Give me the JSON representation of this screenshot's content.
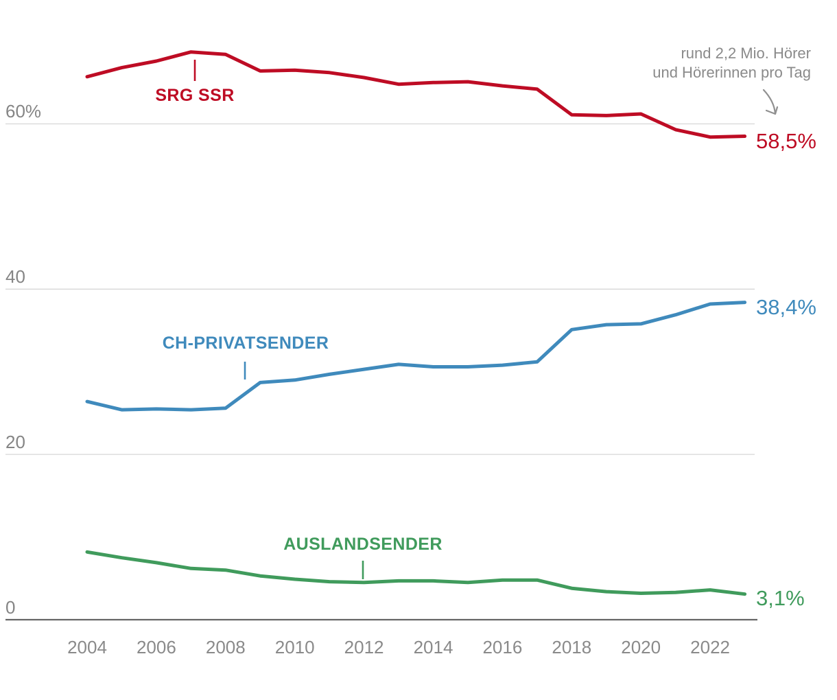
{
  "chart_data": {
    "type": "line",
    "title": "",
    "x": [
      2004,
      2005,
      2006,
      2007,
      2008,
      2009,
      2010,
      2011,
      2012,
      2013,
      2014,
      2015,
      2016,
      2017,
      2018,
      2019,
      2020,
      2021,
      2022,
      2023
    ],
    "x_tick_labels": [
      "2004",
      "2006",
      "2008",
      "2010",
      "2012",
      "2014",
      "2016",
      "2018",
      "2020",
      "2022"
    ],
    "y_ticks": [
      {
        "value": 60,
        "label": "60%"
      },
      {
        "value": 40,
        "label": "40"
      },
      {
        "value": 20,
        "label": "20"
      },
      {
        "value": 0,
        "label": "0"
      }
    ],
    "ylim": [
      0,
      75
    ],
    "grid": "horizontal",
    "legend": "inline-labels",
    "series": [
      {
        "name": "SRG SSR",
        "color": "#be0c24",
        "end_label": "58,5%",
        "values": [
          65.7,
          66.8,
          67.6,
          68.7,
          68.4,
          66.4,
          66.5,
          66.2,
          65.6,
          64.8,
          65.0,
          65.1,
          64.6,
          64.2,
          61.1,
          61.0,
          61.2,
          59.3,
          58.4,
          58.5
        ]
      },
      {
        "name": "CH-PRIVATSENDER",
        "color": "#3f8abc",
        "end_label": "38,4%",
        "values": [
          26.4,
          25.4,
          25.5,
          25.4,
          25.6,
          28.7,
          29.0,
          29.7,
          30.3,
          30.9,
          30.6,
          30.6,
          30.8,
          31.2,
          35.1,
          35.7,
          35.8,
          36.9,
          38.2,
          38.4
        ]
      },
      {
        "name": "AUSLANDSENDER",
        "color": "#409b5c",
        "end_label": "3,1%",
        "values": [
          8.2,
          7.5,
          6.9,
          6.2,
          6.0,
          5.3,
          4.9,
          4.6,
          4.5,
          4.7,
          4.7,
          4.5,
          4.8,
          4.8,
          3.8,
          3.4,
          3.2,
          3.3,
          3.6,
          3.1
        ]
      }
    ],
    "annotation": {
      "line1": "rund 2,2 Mio. Hörer",
      "line2": "und Hörerinnen pro Tag"
    }
  },
  "colors": {
    "annotation": "#8a8a8a",
    "arrow": "#909090",
    "axis_line": "#666666",
    "gridline": "#d7d7d7",
    "y_label": "#858585",
    "x_label": "#8a8a8a",
    "background": "#ffffff"
  }
}
